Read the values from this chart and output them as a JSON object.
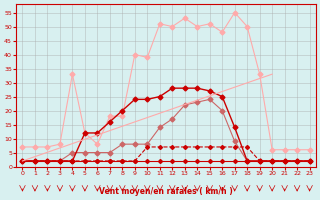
{
  "x": [
    0,
    1,
    2,
    3,
    4,
    5,
    6,
    7,
    8,
    9,
    10,
    11,
    12,
    13,
    14,
    15,
    16,
    17,
    18,
    19,
    20,
    21,
    22,
    23
  ],
  "line1": [
    2,
    2,
    2,
    2,
    2,
    12,
    12,
    16,
    20,
    24,
    24,
    25,
    28,
    28,
    28,
    27,
    25,
    14,
    2,
    2,
    2,
    2,
    2,
    2
  ],
  "line2": [
    2,
    2,
    2,
    2,
    2,
    2,
    2,
    2,
    2,
    2,
    7,
    7,
    7,
    7,
    7,
    7,
    7,
    7,
    7,
    2,
    2,
    2,
    2,
    2
  ],
  "line3": [
    7,
    7,
    7,
    8,
    33,
    12,
    8,
    18,
    18,
    40,
    39,
    51,
    50,
    53,
    50,
    51,
    48,
    55,
    50,
    33,
    6,
    6,
    6,
    6
  ],
  "line4": [
    2,
    2,
    2,
    2,
    5,
    5,
    5,
    5,
    8,
    8,
    8,
    14,
    17,
    22,
    23,
    24,
    20,
    9,
    2,
    2,
    2,
    2,
    2,
    2
  ],
  "line5": [
    2,
    2,
    2,
    2,
    2,
    2,
    2,
    2,
    2,
    2,
    2,
    2,
    2,
    2,
    2,
    2,
    2,
    2,
    2,
    2,
    2,
    2,
    2,
    2
  ],
  "background_color": "#d8f0f0",
  "grid_color": "#aaaaaa",
  "color_dark_red": "#cc0000",
  "color_light_red": "#ff8080",
  "color_medium_red": "#ee4444",
  "ylim": [
    0,
    58
  ],
  "xlim": [
    0,
    23
  ],
  "yticks": [
    0,
    5,
    10,
    15,
    20,
    25,
    30,
    35,
    40,
    45,
    50,
    55
  ],
  "xticks": [
    0,
    1,
    2,
    3,
    4,
    5,
    6,
    7,
    8,
    9,
    10,
    11,
    12,
    13,
    14,
    15,
    16,
    17,
    18,
    19,
    20,
    21,
    22,
    23
  ],
  "xlabel": "Vent moyen/en rafales ( km/h )",
  "wind_arrows": [
    0,
    1,
    2,
    3,
    4,
    5,
    6,
    7,
    8,
    9,
    10,
    11,
    12,
    13,
    14,
    15,
    16,
    17,
    18,
    19,
    20,
    21,
    22,
    23
  ]
}
